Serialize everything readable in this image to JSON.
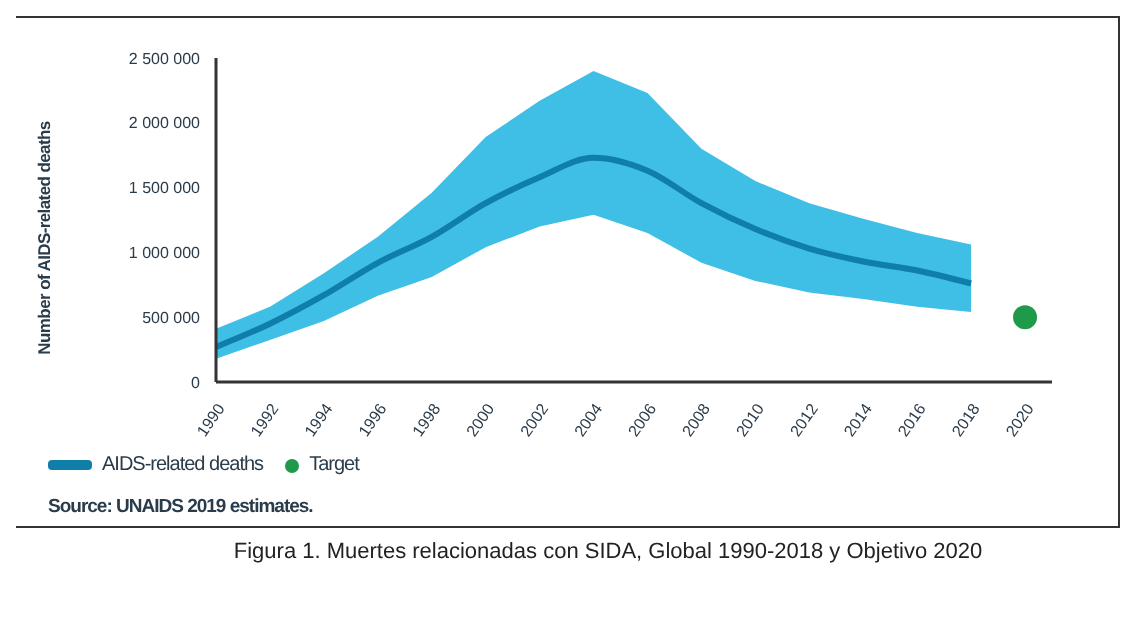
{
  "chart_data": {
    "type": "line",
    "title": "Figura 1. Muertes relacionadas con SIDA, Global 1990-2018 y Objetivo 2020",
    "ylabel": "Number of AIDS-related deaths",
    "annotations": [
      "Source: UNAIDS 2019 estimates."
    ],
    "x": [
      1990,
      1992,
      1994,
      1996,
      1998,
      2000,
      2002,
      2004,
      2006,
      2008,
      2010,
      2012,
      2014,
      2016,
      2018
    ],
    "series": [
      {
        "name": "AIDS-related deaths",
        "color": "#0f7ea8",
        "values": [
          270000,
          450000,
          670000,
          920000,
          1120000,
          1380000,
          1580000,
          1730000,
          1630000,
          1380000,
          1180000,
          1030000,
          930000,
          860000,
          760000
        ],
        "lower": [
          180000,
          325000,
          470000,
          665000,
          810000,
          1040000,
          1200000,
          1290000,
          1150000,
          920000,
          780000,
          690000,
          640000,
          580000,
          540000
        ],
        "upper": [
          410000,
          580000,
          840000,
          1120000,
          1460000,
          1890000,
          2170000,
          2400000,
          2230000,
          1800000,
          1550000,
          1380000,
          1260000,
          1150000,
          1060000
        ]
      },
      {
        "name": "Target",
        "type": "scatter",
        "color": "#1e9a4a",
        "x": [
          2020
        ],
        "values": [
          500000
        ]
      }
    ],
    "xlim": [
      1990,
      2021
    ],
    "xticks": [
      1990,
      1992,
      1994,
      1996,
      1998,
      2000,
      2002,
      2004,
      2006,
      2008,
      2010,
      2012,
      2014,
      2016,
      2018,
      2020
    ],
    "ylim": [
      0,
      2500000
    ],
    "yticks": [
      0,
      {
        "value": 500000,
        "label": "500 000"
      },
      {
        "value": 1000000,
        "label": "1 000 000"
      },
      {
        "value": 1500000,
        "label": "1 500 000"
      },
      {
        "value": 2000000,
        "label": "2 000 000"
      },
      {
        "value": 2500000,
        "label": "2 500 000"
      }
    ],
    "legend": "bottom left",
    "grid": false,
    "line_style": "solid"
  }
}
